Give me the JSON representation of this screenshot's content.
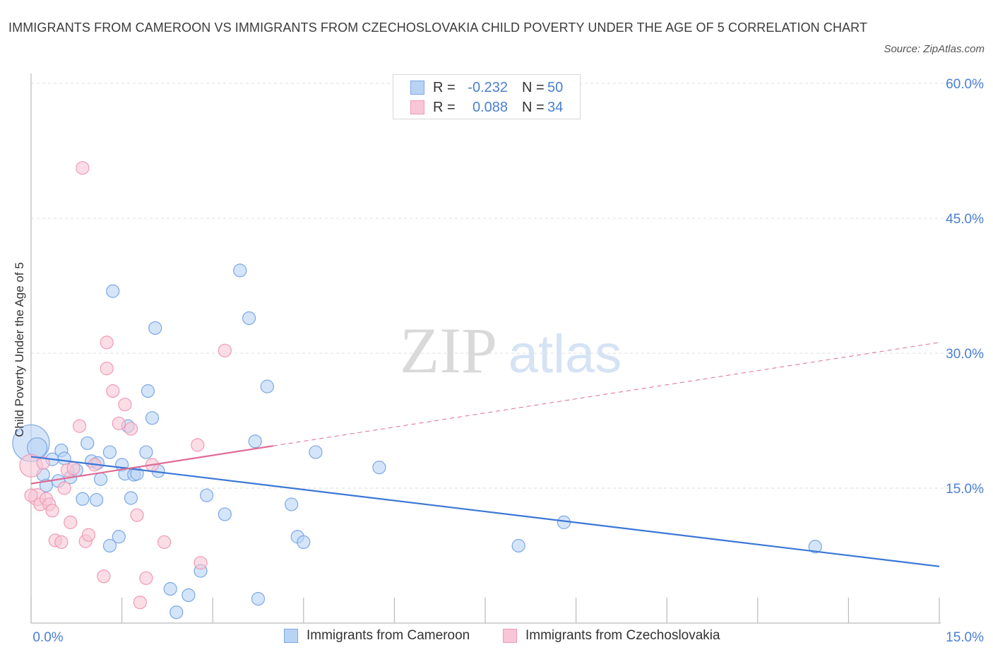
{
  "header": {
    "title": "IMMIGRANTS FROM CAMEROON VS IMMIGRANTS FROM CZECHOSLOVAKIA CHILD POVERTY UNDER THE AGE OF 5 CORRELATION CHART",
    "source": "Source: ZipAtlas.com"
  },
  "watermark": {
    "zip": "ZIP",
    "atlas": "atlas"
  },
  "colors": {
    "blue_fill": "#b9d3f5",
    "blue_stroke": "#7aa7e6",
    "blue_line": "#3a77d6",
    "pink_fill": "#f8c6d6",
    "pink_stroke": "#ef9ab6",
    "pink_line": "#e06a96",
    "axis_text": "#4a7fd4",
    "grid": "#dddddd"
  },
  "legend": {
    "rows": [
      {
        "r_label": "R =",
        "r_value": "-0.232",
        "n_label": "N =",
        "n_value": "50"
      },
      {
        "r_label": "R =",
        "r_value": "0.088",
        "n_label": "N =",
        "n_value": "34"
      }
    ]
  },
  "chart_data": {
    "type": "scatter",
    "ylabel": "Child Poverty Under the Age of 5",
    "xlim": [
      0,
      15
    ],
    "ylim": [
      0,
      60
    ],
    "x_tick_labels": [
      "0.0%",
      "15.0%"
    ],
    "y_tick_labels": [
      "15.0%",
      "30.0%",
      "45.0%",
      "60.0%"
    ],
    "y_ticks": [
      15,
      30,
      45,
      60
    ],
    "grid": true,
    "series": [
      {
        "name": "Immigrants from Cameroon",
        "color": "#7aa7e6",
        "points": [
          [
            0.0,
            20.0
          ],
          [
            0.1,
            19.5
          ],
          [
            0.2,
            16.5
          ],
          [
            0.35,
            18.2
          ],
          [
            0.5,
            19.2
          ],
          [
            0.55,
            18.3
          ],
          [
            0.65,
            16.2
          ],
          [
            0.25,
            15.3
          ],
          [
            0.45,
            15.8
          ],
          [
            0.75,
            17.0
          ],
          [
            0.85,
            13.8
          ],
          [
            0.93,
            20.0
          ],
          [
            1.0,
            18.0
          ],
          [
            1.1,
            17.8
          ],
          [
            1.15,
            16.0
          ],
          [
            1.08,
            13.7
          ],
          [
            1.3,
            19.0
          ],
          [
            1.3,
            8.6
          ],
          [
            1.5,
            17.6
          ],
          [
            1.55,
            16.6
          ],
          [
            1.45,
            9.6
          ],
          [
            1.6,
            21.9
          ],
          [
            1.65,
            13.9
          ],
          [
            1.7,
            16.5
          ],
          [
            1.35,
            36.9
          ],
          [
            1.9,
            19.0
          ],
          [
            2.05,
            32.8
          ],
          [
            2.1,
            16.9
          ],
          [
            1.93,
            25.8
          ],
          [
            2.0,
            22.8
          ],
          [
            2.3,
            3.8
          ],
          [
            2.4,
            1.2
          ],
          [
            2.6,
            3.1
          ],
          [
            2.8,
            5.8
          ],
          [
            2.9,
            14.2
          ],
          [
            3.2,
            12.1
          ],
          [
            3.45,
            39.2
          ],
          [
            3.6,
            33.9
          ],
          [
            3.7,
            20.2
          ],
          [
            3.75,
            2.7
          ],
          [
            3.9,
            26.3
          ],
          [
            4.3,
            13.2
          ],
          [
            4.4,
            9.6
          ],
          [
            4.5,
            9.0
          ],
          [
            4.7,
            19.0
          ],
          [
            5.75,
            17.3
          ],
          [
            8.05,
            8.6
          ],
          [
            8.8,
            11.2
          ],
          [
            12.95,
            8.5
          ],
          [
            1.75,
            16.6
          ]
        ],
        "sizes": [
          26,
          14,
          9,
          9,
          9,
          9,
          9,
          9,
          9,
          9,
          9,
          9,
          9,
          9,
          9,
          9,
          9,
          9,
          9,
          9,
          9,
          9,
          9,
          9,
          9,
          9,
          9,
          9,
          9,
          9,
          9,
          9,
          9,
          9,
          9,
          9,
          9,
          9,
          9,
          9,
          9,
          9,
          9,
          9,
          9,
          9,
          9,
          9,
          9,
          9
        ],
        "trend": [
          [
            0,
            18.5
          ],
          [
            15,
            6.3
          ]
        ]
      },
      {
        "name": "Immigrants from Czechoslovakia",
        "color": "#ef9ab6",
        "points": [
          [
            0.0,
            17.5
          ],
          [
            0.1,
            14.0
          ],
          [
            0.15,
            13.2
          ],
          [
            0.25,
            13.8
          ],
          [
            0.3,
            13.2
          ],
          [
            0.35,
            12.5
          ],
          [
            0.4,
            9.2
          ],
          [
            0.5,
            9.0
          ],
          [
            0.55,
            15.0
          ],
          [
            0.65,
            11.2
          ],
          [
            0.6,
            17.0
          ],
          [
            0.7,
            17.2
          ],
          [
            0.8,
            21.9
          ],
          [
            0.85,
            50.6
          ],
          [
            0.9,
            9.1
          ],
          [
            0.95,
            9.8
          ],
          [
            1.05,
            17.6
          ],
          [
            1.2,
            5.2
          ],
          [
            1.25,
            31.2
          ],
          [
            1.25,
            28.3
          ],
          [
            1.35,
            25.8
          ],
          [
            1.45,
            22.2
          ],
          [
            1.55,
            24.3
          ],
          [
            1.65,
            21.6
          ],
          [
            1.75,
            12.0
          ],
          [
            1.8,
            2.3
          ],
          [
            1.9,
            5.0
          ],
          [
            2.0,
            17.6
          ],
          [
            2.2,
            9.0
          ],
          [
            2.75,
            19.8
          ],
          [
            2.8,
            6.7
          ],
          [
            3.2,
            30.3
          ],
          [
            0.2,
            17.8
          ],
          [
            0.0,
            14.2
          ]
        ],
        "sizes": [
          16,
          12,
          9,
          9,
          9,
          9,
          9,
          9,
          9,
          9,
          9,
          9,
          9,
          9,
          9,
          9,
          9,
          9,
          9,
          9,
          9,
          9,
          9,
          9,
          9,
          9,
          9,
          9,
          9,
          9,
          9,
          9,
          9,
          9
        ],
        "trend_solid": [
          [
            0,
            15.5
          ],
          [
            4.0,
            19.7
          ]
        ],
        "trend_dashed": [
          [
            4.0,
            19.7
          ],
          [
            15,
            31.2
          ]
        ]
      }
    ]
  },
  "bottom_legend": {
    "items": [
      {
        "label": "Immigrants from Cameroon"
      },
      {
        "label": "Immigrants from Czechoslovakia"
      }
    ]
  }
}
